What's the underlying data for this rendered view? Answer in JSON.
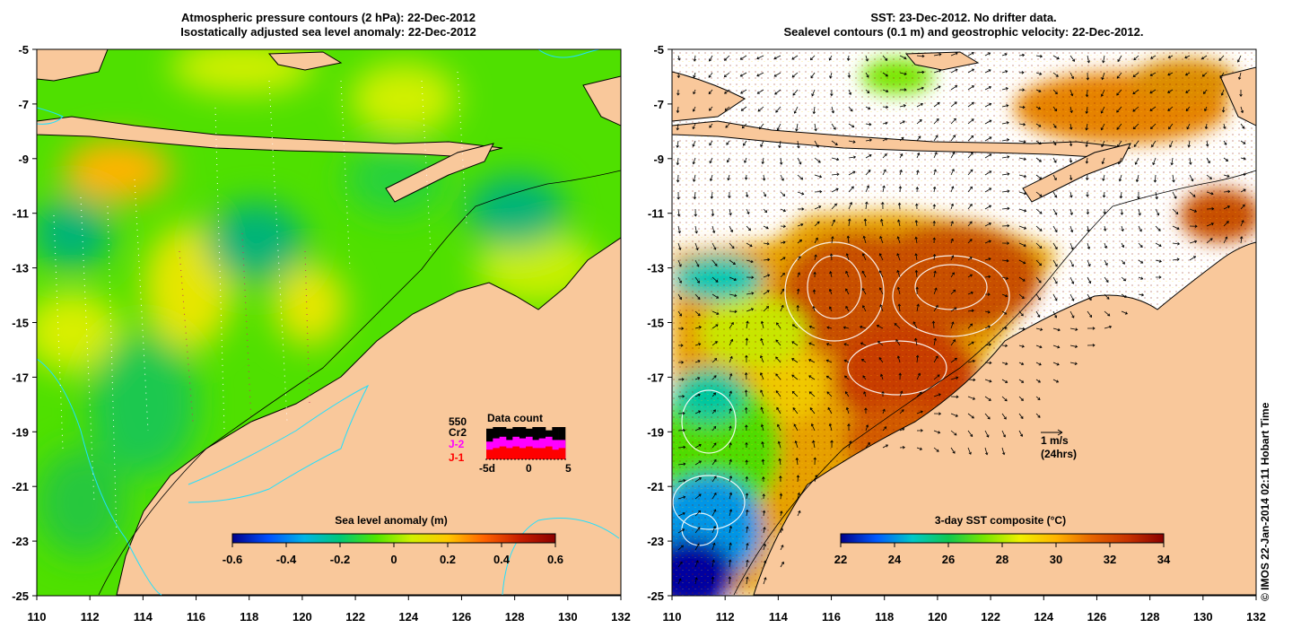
{
  "left_panel": {
    "title_line1": "Atmospheric pressure contours (2 hPa): 22-Dec-2012",
    "title_line2": "Isostatically adjusted sea level anomaly: 22-Dec-2012",
    "colorbar_label": "Sea level anomaly (m)",
    "colorbar_ticks": [
      "-0.6",
      "-0.4",
      "-0.2",
      "0",
      "0.2",
      "0.4",
      "0.6"
    ],
    "x_ticks": [
      "110",
      "112",
      "114",
      "116",
      "118",
      "120",
      "122",
      "124",
      "126",
      "128",
      "130",
      "132"
    ],
    "y_ticks": [
      "-5",
      "-7",
      "-9",
      "-11",
      "-13",
      "-15",
      "-17",
      "-19",
      "-21",
      "-23",
      "-25"
    ],
    "data_count": {
      "title": "Data count",
      "max_label": "550",
      "series": [
        {
          "name": "Cr2",
          "color": "#000000",
          "values": [
            0.95,
            1,
            1,
            0.95,
            1,
            1,
            0.95,
            1,
            1,
            0.9,
            1,
            1
          ]
        },
        {
          "name": "J-2",
          "color": "#ff00ff",
          "values": [
            0.55,
            0.65,
            0.7,
            0.6,
            0.7,
            0.65,
            0.7,
            0.6,
            0.65,
            0.7,
            0.6,
            0.6
          ]
        },
        {
          "name": "J-1",
          "color": "#ff0000",
          "values": [
            0.3,
            0.35,
            0.4,
            0.35,
            0.4,
            0.35,
            0.4,
            0.35,
            0.35,
            0.4,
            0.3,
            0.35
          ]
        }
      ],
      "x_labels": [
        "-5d",
        "0",
        "5"
      ]
    }
  },
  "right_panel": {
    "title_line1": "SST: 23-Dec-2012. No drifter data.",
    "title_line2": "Sealevel contours (0.1 m) and geostrophic velocity: 22-Dec-2012.",
    "colorbar_label": "3-day SST composite (°C)",
    "colorbar_ticks": [
      "22",
      "24",
      "26",
      "28",
      "30",
      "32",
      "34"
    ],
    "x_ticks": [
      "110",
      "112",
      "114",
      "116",
      "118",
      "120",
      "122",
      "124",
      "126",
      "128",
      "130",
      "132"
    ],
    "y_ticks": [
      "-5",
      "-7",
      "-9",
      "-11",
      "-13",
      "-15",
      "-17",
      "-19",
      "-21",
      "-23",
      "-25"
    ],
    "velocity_scale": {
      "line1": "1 m/s",
      "line2": "(24hrs)"
    }
  },
  "copyright": "© IMOS 22-Jan-2014 02:11 Hobart Time",
  "colors": {
    "land": "#f9c89b",
    "sla_colormap": [
      "#00008b",
      "#0050ff",
      "#00b4e6",
      "#00c878",
      "#50e600",
      "#d2f000",
      "#ffc800",
      "#ff6400",
      "#c81e00",
      "#8b0000"
    ],
    "sst_colormap": [
      "#00008b",
      "#005aff",
      "#00c8c8",
      "#10c850",
      "#78e600",
      "#f0f000",
      "#ffb400",
      "#e66400",
      "#c83200",
      "#8b0000"
    ]
  }
}
